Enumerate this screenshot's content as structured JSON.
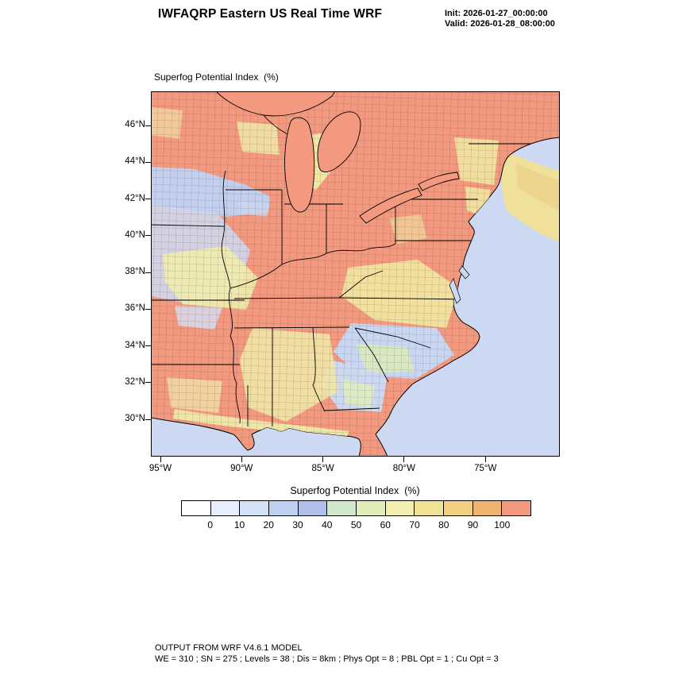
{
  "header": {
    "title": "IWFAQRP Eastern US Real Time WRF",
    "init_label": "Init: 2026-01-27_00:00:00",
    "valid_label": "Valid: 2026-01-28_08:00:00"
  },
  "map": {
    "field_label": "Superfog Potential Index  (%)",
    "lat_ticks": [
      "46°N",
      "44°N",
      "42°N",
      "40°N",
      "38°N",
      "36°N",
      "34°N",
      "32°N",
      "30°N"
    ],
    "lon_ticks": [
      "95°W",
      "90°W",
      "85°W",
      "80°W",
      "75°W"
    ]
  },
  "colorbar": {
    "title": "Superfog Potential Index  (%)",
    "tick_labels": [
      "0",
      "10",
      "20",
      "30",
      "40",
      "50",
      "60",
      "70",
      "80",
      "90",
      "100"
    ],
    "colors": [
      "#FFFFFF",
      "#E6EFFB",
      "#D3E1F7",
      "#BFD1F1",
      "#B0C0E9",
      "#D3E8CA",
      "#E2EEB9",
      "#F2F0B0",
      "#F0E294",
      "#F0D080",
      "#F0B471",
      "#F2997F"
    ]
  },
  "footer": {
    "line1": "OUTPUT FROM WRF V4.6.1 MODEL",
    "line2": "WE = 310 ; SN = 275 ; Levels = 38 ; Dis = 8km ; Phys Opt = 8 ; PBL Opt = 1 ; Cu Opt = 3"
  },
  "chart_data": {
    "type": "heatmap",
    "title": "Superfog Potential Index (%)",
    "model_header": "IWFAQRP Eastern US Real Time WRF",
    "init_time": "2026-01-27_00:00:00",
    "valid_time": "2026-01-28_08:00:00",
    "projection": "lat/lon map of the Eastern United States",
    "x_axis": {
      "label": "longitude",
      "tick_labels": [
        "95°W",
        "90°W",
        "85°W",
        "80°W",
        "75°W"
      ]
    },
    "y_axis": {
      "label": "latitude",
      "tick_labels": [
        "46°N",
        "44°N",
        "42°N",
        "40°N",
        "38°N",
        "36°N",
        "34°N",
        "32°N",
        "30°N"
      ]
    },
    "legend_position": "bottom",
    "colorbar_levels": [
      0,
      10,
      20,
      30,
      40,
      50,
      60,
      70,
      80,
      90,
      100
    ],
    "colorbar_colors": [
      "#FFFFFF",
      "#E6EFFB",
      "#D3E1F7",
      "#BFD1F1",
      "#B0C0E9",
      "#D3E8CA",
      "#E2EEB9",
      "#F2F0B0",
      "#F0E294",
      "#F0D080",
      "#F0B471",
      "#F2997F"
    ],
    "ocean_color": "#CDD8F2",
    "land_base_color": "#F2997F",
    "overlays": [
      "county boundaries",
      "state boundaries",
      "coastline",
      "Great Lakes"
    ],
    "field_summary": [
      {
        "region": "Most interior land (Midwest, Ohio Valley, Kentucky/Tennessee, Northeast, Great Lakes region)",
        "value_pct": "90-100"
      },
      {
        "region": "Iowa / northern Missouri band",
        "value_pct": "20-40"
      },
      {
        "region": "Ozarks (southern Missouri / Arkansas)",
        "value_pct": "40-80 mixed"
      },
      {
        "region": "Wisconsin and central Michigan pockets",
        "value_pct": "60-90"
      },
      {
        "region": "Virginia / Carolinas piedmont band",
        "value_pct": "60-90"
      },
      {
        "region": "Coastal plain of the Carolinas and Georgia",
        "value_pct": "10-50 with green pockets 40-60"
      },
      {
        "region": "Alabama / Georgia / Gulf coast strip",
        "value_pct": "60-90"
      },
      {
        "region": "Atlantic waters offshore New England",
        "value_pct": "60-90"
      },
      {
        "region": "Open Atlantic and Gulf of Mexico",
        "value_pct": "10-20 background shading"
      }
    ]
  }
}
